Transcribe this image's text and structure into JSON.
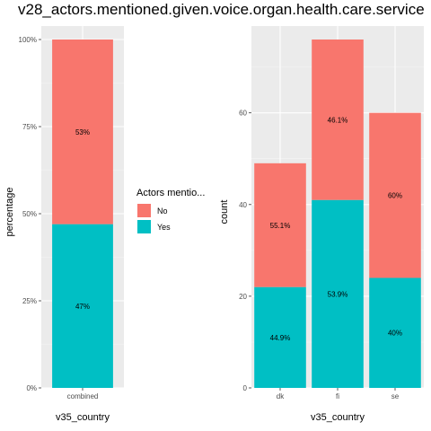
{
  "chart_data": {
    "title": "v28_actors.mentioned.given.voice.organ.health.care.service",
    "legend": {
      "title": "Actors mentio...",
      "position": "center",
      "entries": [
        {
          "label": "No",
          "color": "#F8766D"
        },
        {
          "label": "Yes",
          "color": "#00BFC4"
        }
      ]
    },
    "panels": [
      {
        "type": "bar",
        "stacked": true,
        "xlabel": "v35_country",
        "ylabel": "percentage",
        "ylim": [
          0,
          1
        ],
        "yticks": [
          0,
          0.25,
          0.5,
          0.75,
          1
        ],
        "ytick_labels": [
          "0%",
          "25%",
          "50%",
          "75%",
          "100%"
        ],
        "categories": [
          "combined"
        ],
        "series": [
          {
            "name": "Yes",
            "values": [
              0.47
            ],
            "labels": [
              "47%"
            ]
          },
          {
            "name": "No",
            "values": [
              0.53
            ],
            "labels": [
              "53%"
            ]
          }
        ]
      },
      {
        "type": "bar",
        "stacked": true,
        "xlabel": "v35_country",
        "ylabel": "count",
        "ylim": [
          0,
          76
        ],
        "yticks": [
          0,
          20,
          40,
          60
        ],
        "ytick_labels": [
          "0",
          "20",
          "40",
          "60"
        ],
        "categories": [
          "dk",
          "fi",
          "se"
        ],
        "series": [
          {
            "name": "Yes",
            "values": [
              22,
              41,
              24
            ],
            "labels": [
              "44.9%",
              "53.9%",
              "40%"
            ]
          },
          {
            "name": "No",
            "values": [
              27,
              35,
              36
            ],
            "labels": [
              "55.1%",
              "46.1%",
              "60%"
            ]
          }
        ]
      }
    ]
  }
}
